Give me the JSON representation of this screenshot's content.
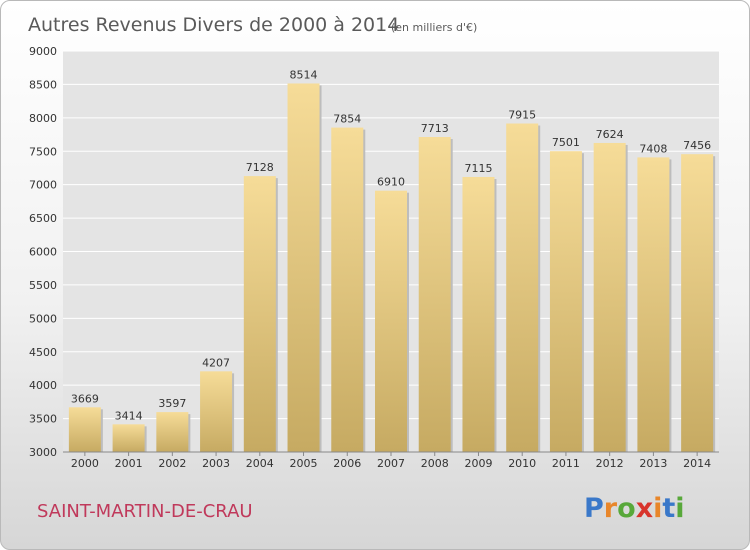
{
  "chart_data": {
    "type": "bar",
    "title": "Autres Revenus Divers de 2000 à 2014",
    "subtitle": "(en milliers d'€)",
    "categories": [
      "2000",
      "2001",
      "2002",
      "2003",
      "2004",
      "2005",
      "2006",
      "2007",
      "2008",
      "2009",
      "2010",
      "2011",
      "2012",
      "2013",
      "2014"
    ],
    "values": [
      3669,
      3414,
      3597,
      4207,
      7128,
      8514,
      7854,
      6910,
      7713,
      7115,
      7915,
      7501,
      7624,
      7408,
      7456
    ],
    "ylim": [
      3000,
      9000
    ],
    "yticks": [
      3000,
      3500,
      4000,
      4500,
      5000,
      5500,
      6000,
      6500,
      7000,
      7500,
      8000,
      8500,
      9000
    ],
    "grid": true,
    "bar_color": "#e8cd82"
  },
  "commune": "SAINT-MARTIN-DE-CRAU",
  "logo": {
    "letters": [
      "P",
      "r",
      "o",
      "x",
      "i",
      "t",
      "i"
    ],
    "colors": [
      "#3a78c9",
      "#e8862a",
      "#58a83a",
      "#d8342c",
      "#e8862a",
      "#3a78c9",
      "#58a83a"
    ]
  }
}
